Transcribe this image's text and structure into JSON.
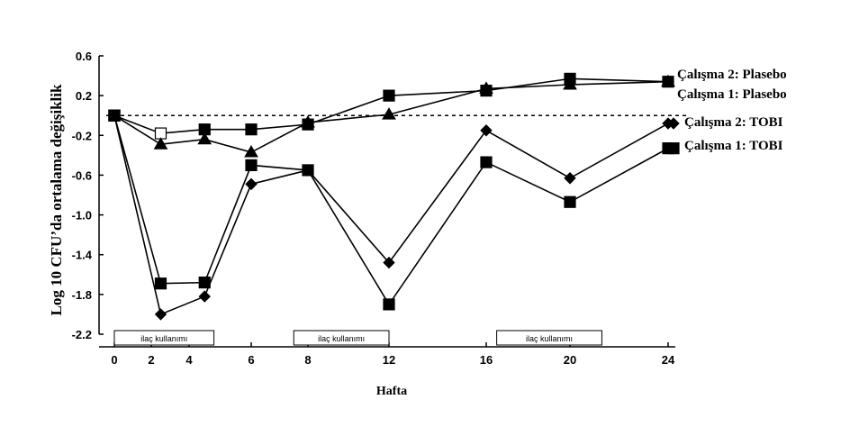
{
  "chart_data": {
    "type": "line",
    "title": "",
    "xlabel": "Hafta",
    "ylabel": "Log 10 CFU’da ortalama değişiklik",
    "ylim": [
      -2.2,
      0.6
    ],
    "y_ticks": [
      "0.6",
      "0.2",
      "-0.2",
      "-0.6",
      "-1.0",
      "-1.4",
      "-1.8",
      "-2.2"
    ],
    "x_ticks": [
      "0",
      "2",
      "4",
      "6",
      "8",
      "12",
      "16",
      "20",
      "24"
    ],
    "x_tick_values": [
      0,
      2,
      4,
      6,
      8,
      12,
      16,
      20,
      24
    ],
    "reference_line": 0,
    "grid": false,
    "legend": "right",
    "series": [
      {
        "name": "Çalışma 2: Plasebo",
        "marker": "square",
        "x": [
          0,
          2.5,
          4.5,
          6,
          8,
          12,
          16,
          20,
          24
        ],
        "values": [
          0,
          -0.18,
          -0.14,
          -0.14,
          -0.09,
          0.2,
          0.25,
          0.37,
          0.34
        ]
      },
      {
        "name": "Çalışma 1: Plasebo",
        "marker": "triangle",
        "x": [
          0,
          2.5,
          4.5,
          6,
          8,
          12,
          16,
          20,
          24
        ],
        "values": [
          0,
          -0.29,
          -0.24,
          -0.37,
          -0.07,
          0.01,
          0.27,
          0.31,
          0.34
        ]
      },
      {
        "name": "Çalışma 2: TOBI",
        "marker": "diamond",
        "x": [
          0,
          2.5,
          4.5,
          6,
          8,
          12,
          16,
          20,
          24
        ],
        "values": [
          0,
          -2.0,
          -1.82,
          -0.69,
          -0.55,
          -1.48,
          -0.15,
          -0.63,
          -0.08
        ]
      },
      {
        "name": "Çalışma 1: TOBI",
        "marker": "square",
        "x": [
          0,
          2.5,
          4.5,
          6,
          8,
          12,
          16,
          20,
          24
        ],
        "values": [
          0,
          -1.69,
          -1.68,
          -0.5,
          -0.55,
          -1.9,
          -0.47,
          -0.87,
          -0.33
        ]
      }
    ],
    "on_off_boxes": [
      {
        "label": "ilaç kullanımı",
        "x_start": 0,
        "x_end": 4.8
      },
      {
        "label": "ilaç kullanımı",
        "x_start": 7.5,
        "x_end": 12
      },
      {
        "label": "ilaç kullanımı",
        "x_start": 16.5,
        "x_end": 21.3
      }
    ]
  }
}
